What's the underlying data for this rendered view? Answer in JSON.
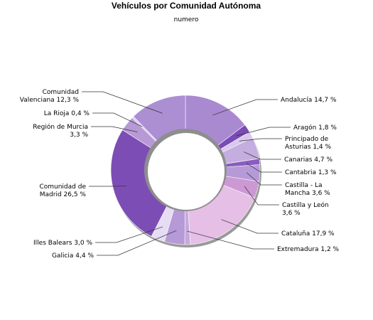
{
  "chart_data": {
    "type": "pie",
    "variant": "donut",
    "title": "Vehículos por Comunidad Autónoma",
    "subtitle": "numero",
    "unit": "%",
    "slices": [
      {
        "label": "Andalucía 14,7 %",
        "value": 14.7,
        "color": "#a98ad0"
      },
      {
        "label": "Aragón 1,8 %",
        "value": 1.8,
        "color": "#7a4bb5"
      },
      {
        "label": "Principado de Asturias 1,4 %",
        "value": 1.4,
        "color": "#d8c8ec"
      },
      {
        "label": "Canarias 4,7 %",
        "value": 4.7,
        "color": "#c4addf"
      },
      {
        "label": "Cantabria 1,3 %",
        "value": 1.3,
        "color": "#8a5cc0"
      },
      {
        "label": "Castilla - La Mancha 3,6 %",
        "value": 3.6,
        "color": "#b69ad8"
      },
      {
        "label": "Castilla y León 3,6 %",
        "value": 3.6,
        "color": "#cc99d4"
      },
      {
        "label": "Cataluña 17,9 %",
        "value": 17.9,
        "color": "#e5bfe6"
      },
      {
        "label": "Extremadura 1,2 %",
        "value": 1.2,
        "color": "#c6a8da"
      },
      {
        "label": "Galicia 4,4 %",
        "value": 4.4,
        "color": "#b59ad7"
      },
      {
        "label": "Illes Balears 3,0 %",
        "value": 3.0,
        "color": "#e6dcf3"
      },
      {
        "label": "Comunidad de Madrid 26,5 %",
        "value": 26.5,
        "color": "#7d4db6"
      },
      {
        "label": "Región de Murcia 3,3 %",
        "value": 3.3,
        "color": "#b899d6"
      },
      {
        "label": "La Rioja 0,4 %",
        "value": 0.4,
        "color": "#d9c8ee"
      },
      {
        "label": "Comunidad Valenciana 12,3 %",
        "value": 12.3,
        "color": "#ab8fd2"
      }
    ]
  }
}
